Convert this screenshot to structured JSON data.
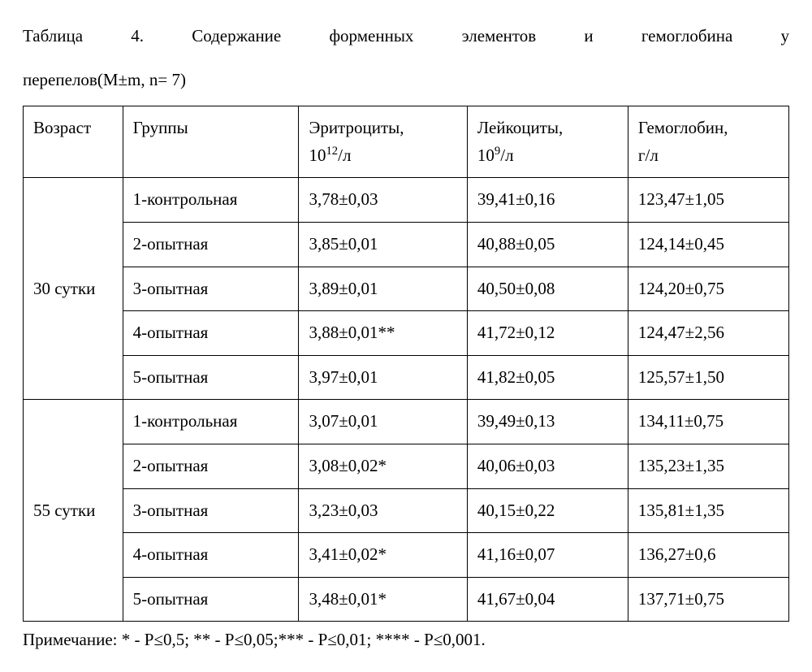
{
  "caption_line1": "Таблица 4. Содержание форменных элементов и гемоглобина у",
  "caption_line2": "перепелов(M±m, n= 7)",
  "columns": {
    "age": "Возраст",
    "group": "Группы",
    "ery_label": "Эритроциты,",
    "ery_unit_pre": "10",
    "ery_unit_sup": "12",
    "ery_unit_post": "/л",
    "leu_label": "Лейкоциты,",
    "leu_unit_pre": "10",
    "leu_unit_sup": "9",
    "leu_unit_post": "/л",
    "hem_label": "Гемоглобин,",
    "hem_unit": "г/л"
  },
  "sections": [
    {
      "age": "30 сутки",
      "rows": [
        {
          "group": "1-контрольная",
          "ery": "3,78±0,03",
          "leu": "39,41±0,16",
          "hem": "123,47±1,05"
        },
        {
          "group": "2-опытная",
          "ery": "3,85±0,01",
          "leu": "40,88±0,05",
          "hem": "124,14±0,45"
        },
        {
          "group": "3-опытная",
          "ery": "3,89±0,01",
          "leu": "40,50±0,08",
          "hem": "124,20±0,75"
        },
        {
          "group": "4-опытная",
          "ery": "3,88±0,01**",
          "leu": "41,72±0,12",
          "hem": "124,47±2,56"
        },
        {
          "group": "5-опытная",
          "ery": "3,97±0,01",
          "leu": "41,82±0,05",
          "hem": "125,57±1,50"
        }
      ]
    },
    {
      "age": "55 сутки",
      "rows": [
        {
          "group": "1-контрольная",
          "ery": "3,07±0,01",
          "leu": "39,49±0,13",
          "hem": "134,11±0,75"
        },
        {
          "group": "2-опытная",
          "ery": "3,08±0,02*",
          "leu": "40,06±0,03",
          "hem": "135,23±1,35"
        },
        {
          "group": "3-опытная",
          "ery": "3,23±0,03",
          "leu": "40,15±0,22",
          "hem": "135,81±1,35"
        },
        {
          "group": "4-опытная",
          "ery": "3,41±0,02*",
          "leu": "41,16±0,07",
          "hem": "136,27±0,6"
        },
        {
          "group": "5-опытная",
          "ery": "3,48±0,01*",
          "leu": "41,67±0,04",
          "hem": "137,71±0,75"
        }
      ]
    }
  ],
  "footnote": "Примечание: * - Р≤0,5; ** - Р≤0,05;*** - Р≤0,01; **** - Р≤0,001."
}
